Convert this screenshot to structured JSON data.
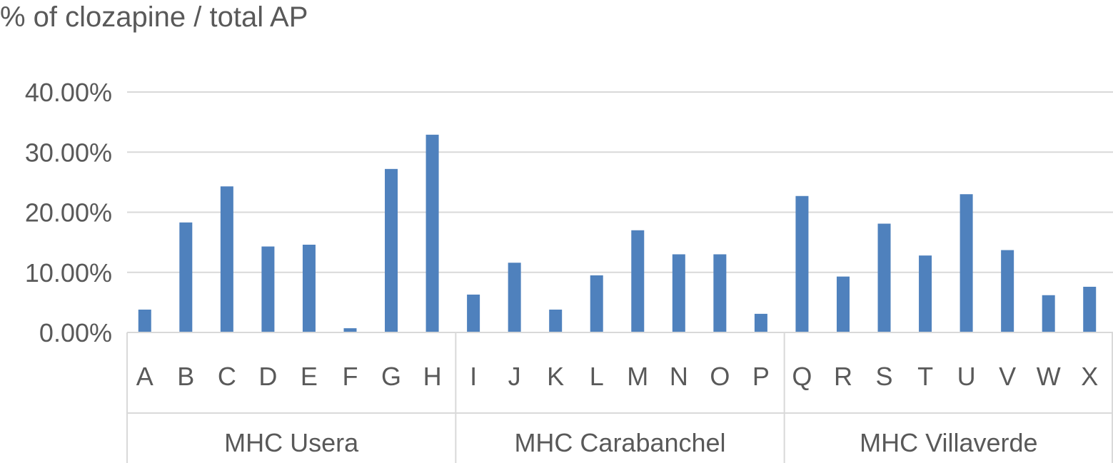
{
  "chart_data": {
    "type": "bar",
    "title": "% of clozapine / total AP",
    "xlabel": "",
    "ylabel": "",
    "ylim": [
      0,
      40
    ],
    "yticks": [
      "0.00%",
      "10.00%",
      "20.00%",
      "30.00%",
      "40.00%"
    ],
    "grid": true,
    "legend": "none",
    "bar_color": "#4f81bd",
    "groups": [
      {
        "name": "MHC Usera",
        "categories": [
          "A",
          "B",
          "C",
          "D",
          "E",
          "F",
          "G",
          "H"
        ],
        "values": [
          3.8,
          18.3,
          24.3,
          14.3,
          14.6,
          0.7,
          27.2,
          32.9
        ]
      },
      {
        "name": "MHC Carabanchel",
        "categories": [
          "I",
          "J",
          "K",
          "L",
          "M",
          "N",
          "O",
          "P"
        ],
        "values": [
          6.3,
          11.6,
          3.8,
          9.5,
          17.0,
          13.0,
          13.0,
          3.1
        ]
      },
      {
        "name": "MHC Villaverde",
        "categories": [
          "Q",
          "R",
          "S",
          "T",
          "U",
          "V",
          "W",
          "X"
        ],
        "values": [
          22.7,
          9.3,
          18.1,
          12.8,
          23.0,
          13.7,
          6.2,
          7.6
        ]
      }
    ]
  }
}
